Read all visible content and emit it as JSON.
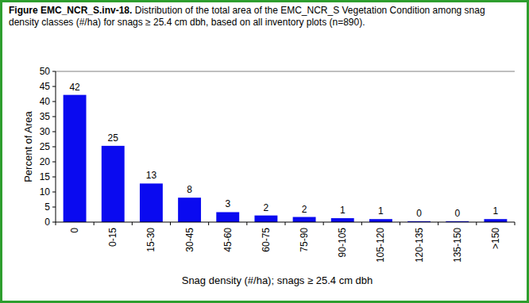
{
  "chart_data": {
    "type": "bar",
    "title": "Figure EMC_NCR_S.inv-18.",
    "subtitle": "Distribution of the total area of the EMC_NCR_S Vegetation Condition among snag density classes (#/ha) for snags ≥ 25.4 cm dbh, based on all inventory plots (n=890).",
    "x_label": "Snag density (#/ha); snags ≥ 25.4 cm dbh",
    "y_label": "Percent of Area",
    "categories": [
      "0",
      "0-15",
      "15-30",
      "30-45",
      "45-60",
      "60-75",
      "75-90",
      "90-105",
      "105-120",
      "120-135",
      "135-150",
      ">150"
    ],
    "values": [
      42.2,
      25.3,
      12.8,
      8.1,
      3.3,
      2.2,
      1.7,
      1.3,
      1.0,
      0.3,
      0.3,
      1.0
    ],
    "value_labels": [
      "42",
      "25",
      "13",
      "8",
      "3",
      "2",
      "2",
      "1",
      "1",
      "0",
      "0",
      "1"
    ],
    "color": "#0a0af0",
    "ylim": [
      0,
      50
    ],
    "yticks": [
      0,
      5,
      10,
      15,
      20,
      25,
      30,
      35,
      40,
      45,
      50
    ],
    "grid": false,
    "data_labels": true
  }
}
